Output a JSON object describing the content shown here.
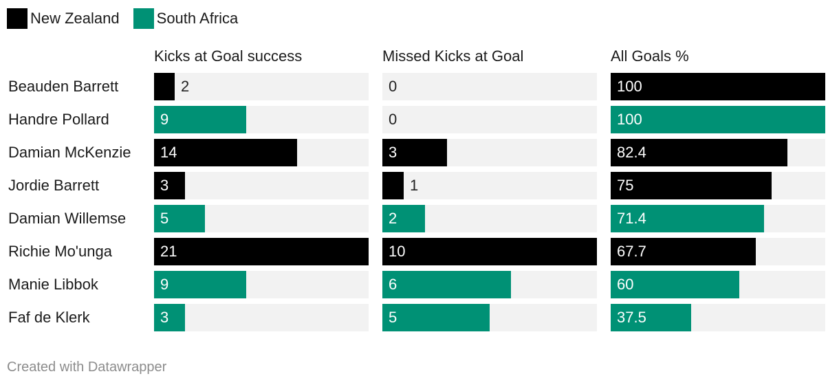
{
  "legend": [
    {
      "label": "New Zealand",
      "color": "#000000"
    },
    {
      "label": "South Africa",
      "color": "#009175"
    }
  ],
  "footer": "Created with Datawrapper",
  "chart_data": {
    "type": "bar",
    "orientation": "horizontal",
    "panels": [
      {
        "key": "success",
        "title": "Kicks at Goal success",
        "max": 21
      },
      {
        "key": "missed",
        "title": "Missed Kicks at Goal",
        "max": 10
      },
      {
        "key": "pct",
        "title": "All Goals %",
        "max": 100
      }
    ],
    "rows": [
      {
        "player": "Beauden Barrett",
        "team": "New Zealand",
        "success": 2,
        "missed": 0,
        "pct": 100
      },
      {
        "player": "Handre Pollard",
        "team": "South Africa",
        "success": 9,
        "missed": 0,
        "pct": 100
      },
      {
        "player": "Damian McKenzie",
        "team": "New Zealand",
        "success": 14,
        "missed": 3,
        "pct": 82.4
      },
      {
        "player": "Jordie Barrett",
        "team": "New Zealand",
        "success": 3,
        "missed": 1,
        "pct": 75
      },
      {
        "player": "Damian Willemse",
        "team": "South Africa",
        "success": 5,
        "missed": 2,
        "pct": 71.4
      },
      {
        "player": "Richie Mo'unga",
        "team": "New Zealand",
        "success": 21,
        "missed": 10,
        "pct": 67.7
      },
      {
        "player": "Manie Libbok",
        "team": "South Africa",
        "success": 9,
        "missed": 6,
        "pct": 60
      },
      {
        "player": "Faf de Klerk",
        "team": "South Africa",
        "success": 3,
        "missed": 5,
        "pct": 37.5
      }
    ]
  }
}
